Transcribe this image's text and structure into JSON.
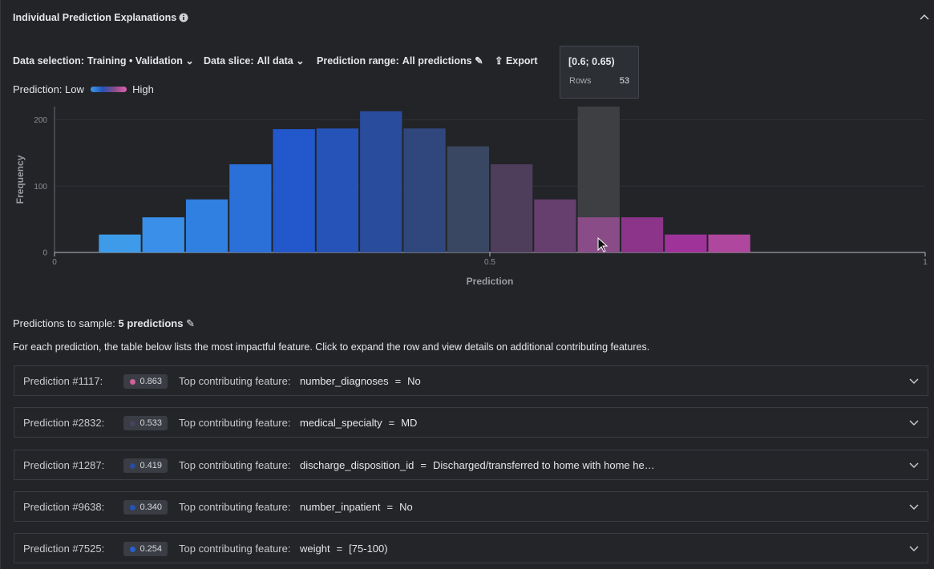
{
  "header": {
    "title": "Individual Prediction Explanations"
  },
  "controls": [
    {
      "label": "Data selection:",
      "value": "Training • Validation"
    },
    {
      "label": "Data slice:",
      "value": "All data"
    },
    {
      "label": "Prediction range:",
      "value": "All predictions"
    }
  ],
  "export": "Export",
  "legend": {
    "label": "Prediction:",
    "low": "Low",
    "high": "High"
  },
  "chart_data": {
    "type": "histogram",
    "y_label": "Frequency",
    "x_label": "Prediction",
    "bins": [
      0.05,
      0.1,
      0.15,
      0.2,
      0.25,
      0.3,
      0.35,
      0.4,
      0.45,
      0.5,
      0.55,
      0.6,
      0.65,
      0.7,
      0.75,
      0.8
    ],
    "values": [
      27,
      53,
      80,
      133,
      186,
      187,
      213,
      187,
      160,
      133,
      80,
      53,
      53,
      27,
      27
    ],
    "colors": [
      "#3d9be9",
      "#3a8fe8",
      "#2f80e0",
      "#2b6fd8",
      "#2358cc",
      "#2553b8",
      "#2a4c9c",
      "#30477e",
      "#3a4762",
      "#4f3d5c",
      "#663f6e",
      "#8a4c87",
      "#8c3489",
      "#a0339a",
      "#b0479e"
    ],
    "xlim": [
      0,
      1
    ],
    "ylim": [
      0,
      220
    ],
    "xticks": [
      0,
      0.5,
      1
    ],
    "yticks": [
      0,
      100,
      200
    ],
    "grid": true,
    "tooltip": {
      "title": "[0.6; 0.65)",
      "label": "Rows",
      "value": 53
    }
  },
  "sample": {
    "label": "Predictions to sample:",
    "value": "5 predictions",
    "description": "For each prediction, the table below lists the most impactful feature. Click to expand the row and view details on additional contributing features."
  },
  "rows": [
    {
      "id": "Prediction #1117:",
      "score": "0.863",
      "score_color": "#d0619c",
      "feature_label": "Top contributing feature:",
      "feature": "number_diagnoses",
      "operator": "=",
      "value": "No"
    },
    {
      "id": "Prediction #2832:",
      "score": "0.533",
      "score_color": "#4a4060",
      "feature_label": "Top contributing feature:",
      "feature": "medical_specialty",
      "operator": "=",
      "value": "MD"
    },
    {
      "id": "Prediction #1287:",
      "score": "0.419",
      "score_color": "#2a4c9c",
      "feature_label": "Top contributing feature:",
      "feature": "discharge_disposition_id",
      "operator": "=",
      "value": "Discharged/transferred to home with home he…"
    },
    {
      "id": "Prediction #9638:",
      "score": "0.340",
      "score_color": "#2553b8",
      "feature_label": "Top contributing feature:",
      "feature": "number_inpatient",
      "operator": "=",
      "value": "No"
    },
    {
      "id": "Prediction #7525:",
      "score": "0.254",
      "score_color": "#2b5fd0",
      "feature_label": "Top contributing feature:",
      "feature": "weight",
      "operator": "=",
      "value": "[75-100)"
    }
  ]
}
